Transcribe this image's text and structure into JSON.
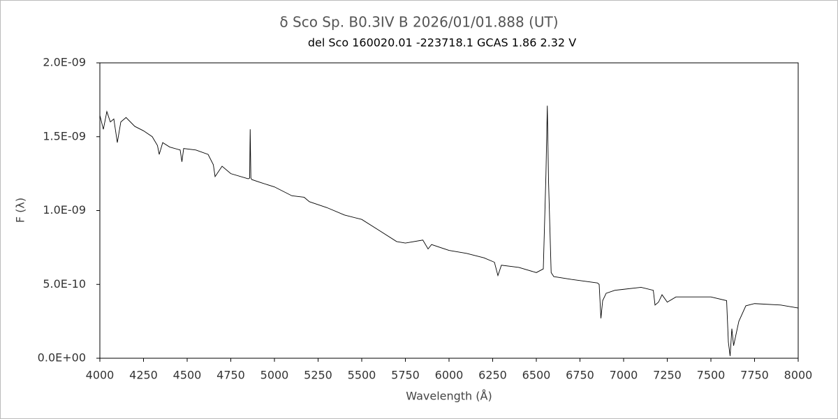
{
  "chart_data": {
    "type": "line",
    "title": "δ Sco    Sp. B0.3IV B    2026/01/01.888 (UT)",
    "subtitle": "del Sco    160020.01 -223718.1    GCAS    1.86  2.32  V",
    "x_label": "Wavelength (Å)",
    "y_label": "F (λ)",
    "xlim": [
      4000,
      8000
    ],
    "xticks": [
      4000,
      4250,
      4500,
      4750,
      5000,
      5250,
      5500,
      5750,
      6000,
      6250,
      6500,
      6750,
      7000,
      7250,
      7500,
      7750,
      8000
    ],
    "ylim": [
      0,
      2e-09
    ],
    "yticks": [
      {
        "value": 0,
        "label": "0.0E+00"
      },
      {
        "value": 5e-10,
        "label": "5.0E-10"
      },
      {
        "value": 1e-09,
        "label": "1.0E-09"
      },
      {
        "value": 1.5e-09,
        "label": "1.5E-09"
      },
      {
        "value": 2e-09,
        "label": "2.0E-09"
      }
    ],
    "grid": false,
    "series": [
      {
        "color": "#000000",
        "x": [
          4000,
          4020,
          4040,
          4060,
          4080,
          4100,
          4120,
          4150,
          4200,
          4250,
          4300,
          4330,
          4340,
          4360,
          4400,
          4460,
          4470,
          4480,
          4550,
          4620,
          4650,
          4660,
          4700,
          4750,
          4850,
          4858,
          4861,
          4865,
          4870,
          4920,
          5000,
          5100,
          5170,
          5200,
          5300,
          5400,
          5500,
          5600,
          5700,
          5750,
          5850,
          5880,
          5900,
          6000,
          6100,
          6200,
          6260,
          6280,
          6300,
          6400,
          6500,
          6540,
          6555,
          6563,
          6570,
          6585,
          6600,
          6700,
          6850,
          6860,
          6870,
          6880,
          6900,
          6950,
          7100,
          7170,
          7180,
          7200,
          7220,
          7250,
          7300,
          7500,
          7590,
          7600,
          7610,
          7620,
          7630,
          7660,
          7700,
          7750,
          7900,
          8000
        ],
        "values": [
          1.645e-09,
          1.55e-09,
          1.67e-09,
          1.6e-09,
          1.62e-09,
          1.46e-09,
          1.6e-09,
          1.63e-09,
          1.57e-09,
          1.54e-09,
          1.5e-09,
          1.44e-09,
          1.38e-09,
          1.46e-09,
          1.43e-09,
          1.41e-09,
          1.33e-09,
          1.42e-09,
          1.41e-09,
          1.38e-09,
          1.31e-09,
          1.23e-09,
          1.3e-09,
          1.25e-09,
          1.215e-09,
          1.22e-09,
          1.55e-09,
          1.22e-09,
          1.21e-09,
          1.19e-09,
          1.16e-09,
          1.1e-09,
          1.09e-09,
          1.06e-09,
          1.02e-09,
          9.7e-10,
          9.4e-10,
          8.65e-10,
          7.9e-10,
          7.8e-10,
          8e-10,
          7.4e-10,
          7.7e-10,
          7.3e-10,
          7.1e-10,
          6.8e-10,
          6.5e-10,
          5.6e-10,
          6.3e-10,
          6.15e-10,
          5.8e-10,
          6.05e-10,
          1.24e-09,
          1.71e-09,
          1.2e-09,
          5.8e-10,
          5.53e-10,
          5.34e-10,
          5.1e-10,
          5e-10,
          2.7e-10,
          3.9e-10,
          4.4e-10,
          4.6e-10,
          4.8e-10,
          4.6e-10,
          3.6e-10,
          3.8e-10,
          4.3e-10,
          3.8e-10,
          4.15e-10,
          4.15e-10,
          3.9e-10,
          1.1e-10,
          1.5e-11,
          2e-10,
          8.5e-11,
          2.5e-10,
          3.55e-10,
          3.7e-10,
          3.6e-10,
          3.4e-10
        ]
      }
    ]
  }
}
